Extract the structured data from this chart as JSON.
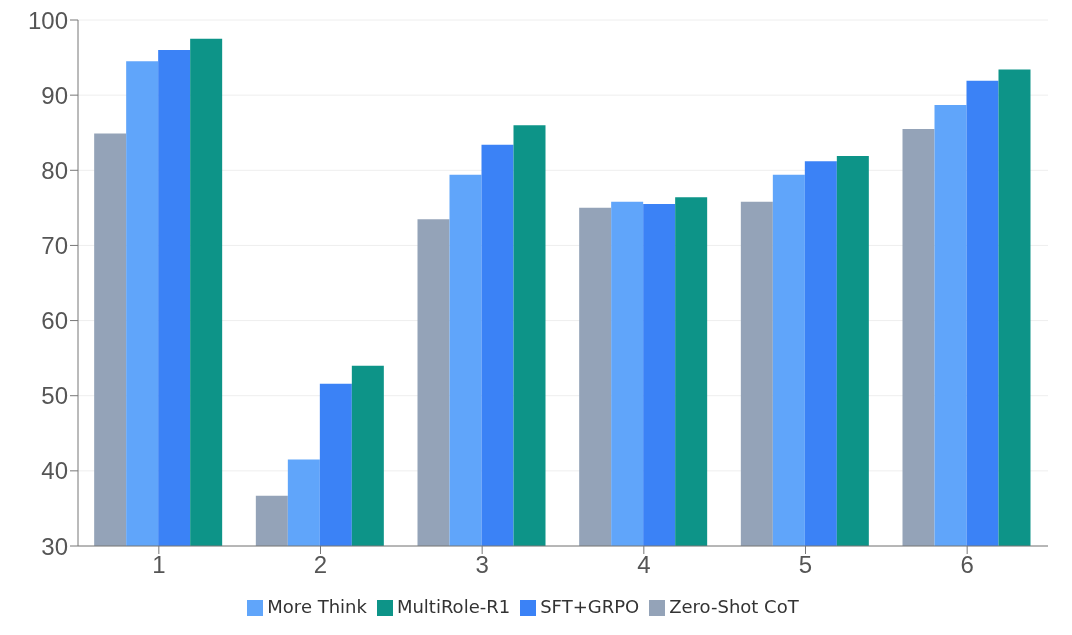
{
  "chart_data": {
    "type": "bar",
    "categories": [
      "1",
      "2",
      "3",
      "4",
      "5",
      "6"
    ],
    "series": [
      {
        "name": "Zero-Shot CoT",
        "color": "#94a3b8",
        "values": [
          84.9,
          36.7,
          73.5,
          75.0,
          75.8,
          85.5
        ]
      },
      {
        "name": "More Think",
        "color": "#60a5fa",
        "values": [
          94.5,
          41.5,
          79.4,
          75.8,
          79.4,
          88.7
        ]
      },
      {
        "name": "SFT+GRPO",
        "color": "#3b82f6",
        "values": [
          96.0,
          51.6,
          83.4,
          75.5,
          81.2,
          91.9
        ]
      },
      {
        "name": "MultiRole-R1",
        "color": "#0d9488",
        "values": [
          97.5,
          54.0,
          86.0,
          76.4,
          81.9,
          93.4
        ]
      }
    ],
    "ylim": [
      30,
      100
    ],
    "yticks": [
      30,
      40,
      50,
      60,
      70,
      80,
      90,
      100
    ],
    "grid": "y",
    "legend": "bottom"
  }
}
